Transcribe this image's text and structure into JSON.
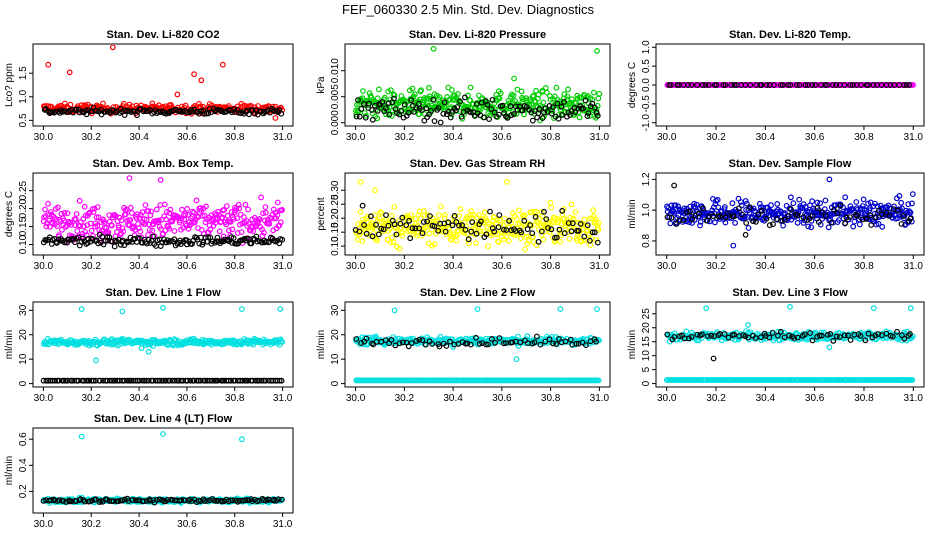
{
  "page": {
    "title": "FEF_060330  2.5 Min. Std. Dev. Diagnostics"
  },
  "chart_data": [
    {
      "type": "scatter",
      "title": "Stan. Dev. Li-820 CO2",
      "ylabel": "Lco? ppm",
      "xlim": [
        30.0,
        31.0
      ],
      "ylim": [
        0.45,
        2.05
      ],
      "xticks": [
        30.0,
        30.2,
        30.4,
        30.6,
        30.8,
        31.0
      ],
      "xtick_labels": [
        "30.0",
        "30.2",
        "30.4",
        "30.6",
        "30.8",
        "31.0"
      ],
      "yticks": [
        0.5,
        1.0,
        1.5
      ],
      "ytick_labels": [
        "0.5",
        "1.0",
        "1.5"
      ],
      "series": [
        {
          "name": "primary",
          "color": "#ff0000",
          "n": 260,
          "base": 0.75,
          "spread": 0.09,
          "outliers": [
            [
              30.02,
              1.68
            ],
            [
              30.11,
              1.52
            ],
            [
              30.29,
              2.05
            ],
            [
              30.63,
              1.48
            ],
            [
              30.66,
              1.35
            ],
            [
              30.75,
              1.68
            ],
            [
              30.56,
              1.05
            ],
            [
              30.97,
              0.55
            ]
          ]
        },
        {
          "name": "secondary",
          "color": "#000000",
          "n": 140,
          "base": 0.69,
          "spread": 0.06,
          "outliers": []
        }
      ]
    },
    {
      "type": "scatter",
      "title": "Stan. Dev. Li-820 Pressure",
      "ylabel": "kPa",
      "xlim": [
        30.0,
        31.0
      ],
      "ylim": [
        0.0,
        0.0145
      ],
      "xticks": [
        30.0,
        30.2,
        30.4,
        30.6,
        30.8,
        31.0
      ],
      "xtick_labels": [
        "30.0",
        "30.2",
        "30.4",
        "30.6",
        "30.8",
        "31.0"
      ],
      "yticks": [
        0.0,
        0.005,
        0.01
      ],
      "ytick_labels": [
        "0.000",
        "0.005",
        "0.010"
      ],
      "series": [
        {
          "name": "primary",
          "color": "#00cc00",
          "n": 380,
          "base": 0.0035,
          "spread": 0.0025,
          "outliers": [
            [
              30.32,
              0.0142
            ],
            [
              30.99,
              0.0138
            ],
            [
              30.65,
              0.0085
            ]
          ]
        },
        {
          "name": "secondary",
          "color": "#000000",
          "n": 130,
          "base": 0.0025,
          "spread": 0.002,
          "outliers": []
        }
      ]
    },
    {
      "type": "scatter",
      "title": "Stan. Dev. Li-820 Temp.",
      "ylabel": "degrees C",
      "xlim": [
        30.0,
        31.0
      ],
      "ylim": [
        -1.0,
        1.0
      ],
      "xticks": [
        30.0,
        30.2,
        30.4,
        30.6,
        30.8,
        31.0
      ],
      "xtick_labels": [
        "30.0",
        "30.2",
        "30.4",
        "30.6",
        "30.8",
        "31.0"
      ],
      "yticks": [
        -1.0,
        -0.5,
        0.0,
        0.5,
        1.0
      ],
      "ytick_labels": [
        "-1.0",
        "-0.5",
        "0.0",
        "0.5",
        "1.0"
      ],
      "series": [
        {
          "name": "primary",
          "color": "#ff00ff",
          "n": 300,
          "base": 0.0,
          "spread": 0.0,
          "outliers": []
        },
        {
          "name": "secondary",
          "color": "#000000",
          "n": 60,
          "base": 0.0,
          "spread": 0.0,
          "outliers": []
        }
      ]
    },
    {
      "type": "scatter",
      "title": "Stan. Dev. Amb. Box Temp.",
      "ylabel": "degrees C",
      "xlim": [
        30.0,
        31.0
      ],
      "ylim": [
        0.08,
        0.29
      ],
      "xticks": [
        30.0,
        30.2,
        30.4,
        30.6,
        30.8,
        31.0
      ],
      "xtick_labels": [
        "30.0",
        "30.2",
        "30.4",
        "30.6",
        "30.8",
        "31.0"
      ],
      "yticks": [
        0.1,
        0.15,
        0.2,
        0.25
      ],
      "ytick_labels": [
        "0.10",
        "0.15",
        "0.20",
        "0.25"
      ],
      "series": [
        {
          "name": "primary",
          "color": "#ff00ff",
          "n": 340,
          "base": 0.165,
          "spread": 0.045,
          "outliers": [
            [
              30.36,
              0.285
            ],
            [
              30.49,
              0.28
            ]
          ]
        },
        {
          "name": "secondary",
          "color": "#000000",
          "n": 160,
          "base": 0.11,
          "spread": 0.012,
          "outliers": []
        }
      ]
    },
    {
      "type": "scatter",
      "title": "Stan. Dev. Gas Stream RH",
      "ylabel": "percent",
      "xlim": [
        30.0,
        31.0
      ],
      "ylim": [
        0.08,
        0.35
      ],
      "xticks": [
        30.0,
        30.2,
        30.4,
        30.6,
        30.8,
        31.0
      ],
      "xtick_labels": [
        "30.0",
        "30.2",
        "30.4",
        "30.6",
        "30.8",
        "31.0"
      ],
      "yticks": [
        0.1,
        0.15,
        0.2,
        0.25,
        0.3
      ],
      "ytick_labels": [
        "0.10",
        "0.15",
        "0.20",
        "0.25",
        "0.30"
      ],
      "series": [
        {
          "name": "primary",
          "color": "#ffff00",
          "n": 380,
          "base": 0.17,
          "spread": 0.06,
          "outliers": [
            [
              30.02,
              0.33
            ],
            [
              30.62,
              0.33
            ],
            [
              30.08,
              0.3
            ]
          ]
        },
        {
          "name": "secondary",
          "color": "#000000",
          "n": 90,
          "base": 0.17,
          "spread": 0.05,
          "outliers": []
        }
      ]
    },
    {
      "type": "scatter",
      "title": "Stan. Dev. Sample Flow",
      "ylabel": "ml/min",
      "xlim": [
        30.0,
        31.0
      ],
      "ylim": [
        0.73,
        1.22
      ],
      "xticks": [
        30.0,
        30.2,
        30.4,
        30.6,
        30.8,
        31.0
      ],
      "xtick_labels": [
        "30.0",
        "30.2",
        "30.4",
        "30.6",
        "30.8",
        "31.0"
      ],
      "yticks": [
        0.8,
        1.0,
        1.2
      ],
      "ytick_labels": [
        "0.8",
        "1.0",
        "1.2"
      ],
      "series": [
        {
          "name": "primary",
          "color": "#0000cc",
          "n": 380,
          "base": 0.98,
          "spread": 0.08,
          "outliers": [
            [
              30.66,
              1.2
            ],
            [
              30.27,
              0.77
            ]
          ]
        },
        {
          "name": "secondary",
          "color": "#000000",
          "n": 70,
          "base": 0.96,
          "spread": 0.06,
          "outliers": [
            [
              30.03,
              1.16
            ],
            [
              30.32,
              0.84
            ]
          ]
        }
      ]
    },
    {
      "type": "scatter",
      "title": "Stan. Dev. Line 1 Flow",
      "ylabel": "ml/min",
      "xlim": [
        30.0,
        31.0
      ],
      "ylim": [
        0.0,
        32.0
      ],
      "xticks": [
        30.0,
        30.2,
        30.4,
        30.6,
        30.8,
        31.0
      ],
      "xtick_labels": [
        "30.0",
        "30.2",
        "30.4",
        "30.6",
        "30.8",
        "31.0"
      ],
      "yticks": [
        0,
        10,
        20,
        30
      ],
      "ytick_labels": [
        "0",
        "10",
        "20",
        "30"
      ],
      "series": [
        {
          "name": "primary",
          "color": "#00e0e0",
          "n": 300,
          "base": 17.0,
          "spread": 1.2,
          "outliers": [
            [
              30.16,
              30.5
            ],
            [
              30.5,
              31
            ],
            [
              30.33,
              29.5
            ],
            [
              30.83,
              30.5
            ],
            [
              30.99,
              30.5
            ],
            [
              30.22,
              9.5
            ],
            [
              30.44,
              13
            ],
            [
              30.41,
              14.5
            ]
          ]
        },
        {
          "name": "secondary",
          "color": "#000000",
          "n": 110,
          "base": 1.2,
          "spread": 0.0,
          "outliers": []
        }
      ]
    },
    {
      "type": "scatter",
      "title": "Stan. Dev. Line 2 Flow",
      "ylabel": "ml/min",
      "xlim": [
        30.0,
        31.0
      ],
      "ylim": [
        0.0,
        32.0
      ],
      "xticks": [
        30.0,
        30.2,
        30.4,
        30.6,
        30.8,
        31.0
      ],
      "xtick_labels": [
        "30.0",
        "30.2",
        "30.4",
        "30.6",
        "30.8",
        "31.0"
      ],
      "yticks": [
        0,
        10,
        20,
        30
      ],
      "ytick_labels": [
        "0",
        "10",
        "20",
        "30"
      ],
      "series": [
        {
          "name": "primary",
          "color": "#00e0e0",
          "n": 280,
          "base": 17.5,
          "spread": 1.5,
          "outliers": [
            [
              30.16,
              30
            ],
            [
              30.5,
              30.5
            ],
            [
              30.84,
              30.5
            ],
            [
              30.99,
              30.5
            ],
            [
              30.66,
              10
            ],
            [
              30.4,
              15
            ]
          ]
        },
        {
          "name": "secondary",
          "color": "#000000",
          "n": 70,
          "base": 17.0,
          "spread": 1.5,
          "outliers": []
        },
        {
          "name": "baseline",
          "color": "#00e0e0",
          "n": 200,
          "base": 1.3,
          "spread": 0.0,
          "outliers": []
        }
      ]
    },
    {
      "type": "scatter",
      "title": "Stan. Dev. Line 3 Flow",
      "ylabel": "ml/min",
      "xlim": [
        30.0,
        31.0
      ],
      "ylim": [
        0.0,
        28.0
      ],
      "xticks": [
        30.0,
        30.2,
        30.4,
        30.6,
        30.8,
        31.0
      ],
      "xtick_labels": [
        "30.0",
        "30.2",
        "30.4",
        "30.6",
        "30.8",
        "31.0"
      ],
      "yticks": [
        0,
        5,
        10,
        15,
        20,
        25
      ],
      "ytick_labels": [
        "0",
        "5",
        "10",
        "15",
        "20",
        "25"
      ],
      "series": [
        {
          "name": "primary",
          "color": "#00e0e0",
          "n": 280,
          "base": 17.0,
          "spread": 1.5,
          "outliers": [
            [
              30.16,
              27
            ],
            [
              30.5,
              27.5
            ],
            [
              30.84,
              27
            ],
            [
              30.99,
              27
            ],
            [
              30.33,
              21
            ],
            [
              30.66,
              13
            ]
          ]
        },
        {
          "name": "secondary",
          "color": "#000000",
          "n": 70,
          "base": 17.0,
          "spread": 1.3,
          "outliers": [
            [
              30.19,
              9
            ]
          ]
        },
        {
          "name": "baseline",
          "color": "#00e0e0",
          "n": 200,
          "base": 1.3,
          "spread": 0.0,
          "outliers": []
        }
      ]
    },
    {
      "type": "scatter",
      "title": "Stan. Dev. Line 4 (LT) Flow",
      "ylabel": "ml/min",
      "xlim": [
        30.0,
        31.0
      ],
      "ylim": [
        0.06,
        0.66
      ],
      "xticks": [
        30.0,
        30.2,
        30.4,
        30.6,
        30.8,
        31.0
      ],
      "xtick_labels": [
        "30.0",
        "30.2",
        "30.4",
        "30.6",
        "30.8",
        "31.0"
      ],
      "yticks": [
        0.2,
        0.4,
        0.6
      ],
      "ytick_labels": [
        "0.2",
        "0.4",
        "0.6"
      ],
      "series": [
        {
          "name": "primary",
          "color": "#00e0e0",
          "n": 300,
          "base": 0.13,
          "spread": 0.015,
          "outliers": [
            [
              30.16,
              0.62
            ],
            [
              30.5,
              0.64
            ],
            [
              30.83,
              0.6
            ]
          ]
        },
        {
          "name": "secondary",
          "color": "#000000",
          "n": 110,
          "base": 0.13,
          "spread": 0.012,
          "outliers": []
        }
      ]
    }
  ]
}
